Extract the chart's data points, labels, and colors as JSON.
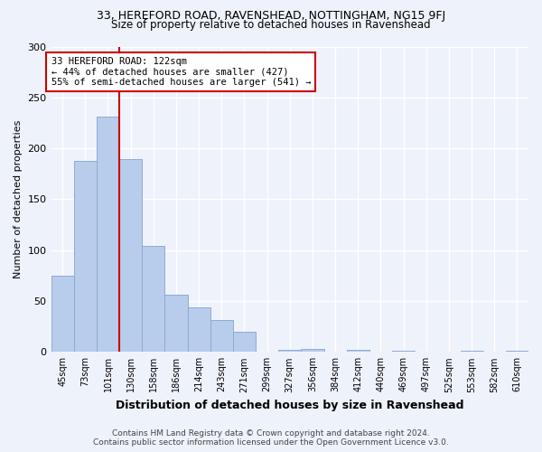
{
  "title": "33, HEREFORD ROAD, RAVENSHEAD, NOTTINGHAM, NG15 9FJ",
  "subtitle": "Size of property relative to detached houses in Ravenshead",
  "xlabel": "Distribution of detached houses by size in Ravenshead",
  "ylabel": "Number of detached properties",
  "categories": [
    "45sqm",
    "73sqm",
    "101sqm",
    "130sqm",
    "158sqm",
    "186sqm",
    "214sqm",
    "243sqm",
    "271sqm",
    "299sqm",
    "327sqm",
    "356sqm",
    "384sqm",
    "412sqm",
    "440sqm",
    "469sqm",
    "497sqm",
    "525sqm",
    "553sqm",
    "582sqm",
    "610sqm"
  ],
  "values": [
    75,
    188,
    231,
    189,
    104,
    56,
    44,
    31,
    20,
    0,
    2,
    3,
    0,
    2,
    0,
    1,
    0,
    0,
    1,
    0,
    1
  ],
  "bar_color": "#b8cceb",
  "bar_edge_color": "#8eabd4",
  "annotation_text": "33 HEREFORD ROAD: 122sqm\n← 44% of detached houses are smaller (427)\n55% of semi-detached houses are larger (541) →",
  "annotation_box_color": "#ffffff",
  "annotation_box_edge": "#cc0000",
  "property_line_color": "#cc0000",
  "ylim": [
    0,
    300
  ],
  "yticks": [
    0,
    50,
    100,
    150,
    200,
    250,
    300
  ],
  "background_color": "#eef2fb",
  "grid_color": "#ffffff",
  "footer": "Contains HM Land Registry data © Crown copyright and database right 2024.\nContains public sector information licensed under the Open Government Licence v3.0."
}
